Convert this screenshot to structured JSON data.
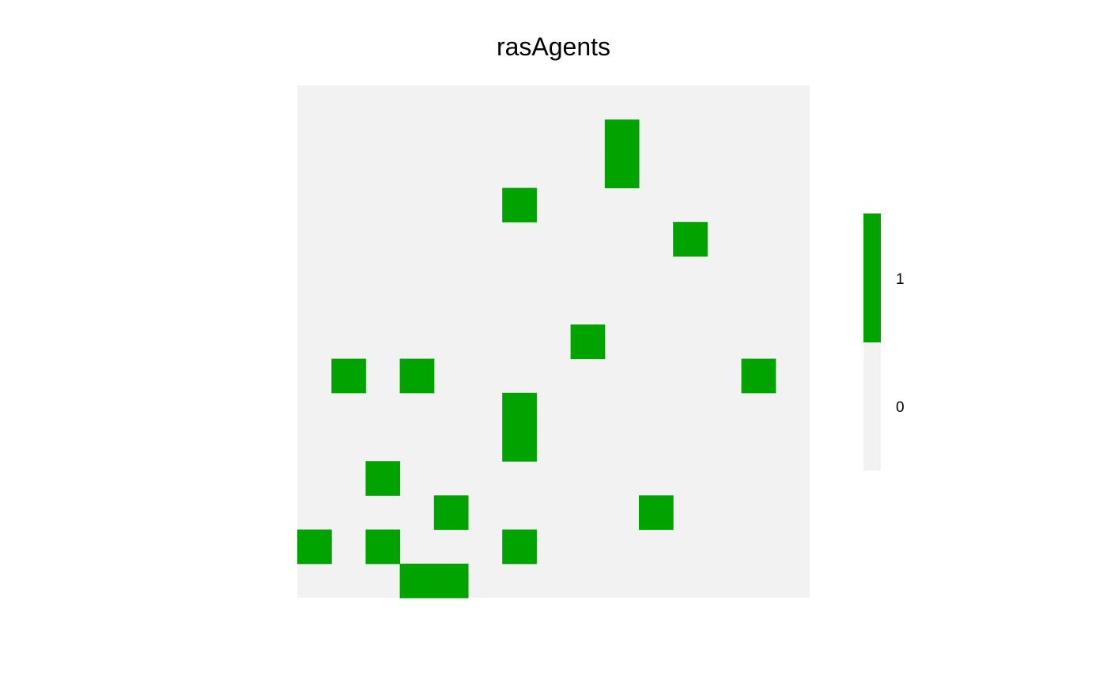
{
  "chart_data": {
    "type": "heatmap",
    "title": "rasAgents",
    "nrows": 15,
    "ncols": 15,
    "value_colors": {
      "0": "#f2f2f2",
      "1": "#00a300"
    },
    "legend": {
      "placement": "right",
      "entries": [
        {
          "value": 1,
          "label": "1",
          "color": "#00a300"
        },
        {
          "value": 0,
          "label": "0",
          "color": "#f2f2f2"
        }
      ]
    },
    "cells_with_value_1": [
      {
        "row": 1,
        "col": 9
      },
      {
        "row": 2,
        "col": 9
      },
      {
        "row": 3,
        "col": 6
      },
      {
        "row": 4,
        "col": 11
      },
      {
        "row": 7,
        "col": 8
      },
      {
        "row": 8,
        "col": 1
      },
      {
        "row": 8,
        "col": 3
      },
      {
        "row": 8,
        "col": 13
      },
      {
        "row": 9,
        "col": 6
      },
      {
        "row": 10,
        "col": 6
      },
      {
        "row": 11,
        "col": 2
      },
      {
        "row": 12,
        "col": 4
      },
      {
        "row": 12,
        "col": 10
      },
      {
        "row": 13,
        "col": 0
      },
      {
        "row": 13,
        "col": 2
      },
      {
        "row": 13,
        "col": 6
      },
      {
        "row": 14,
        "col": 3
      },
      {
        "row": 14,
        "col": 4
      }
    ]
  }
}
